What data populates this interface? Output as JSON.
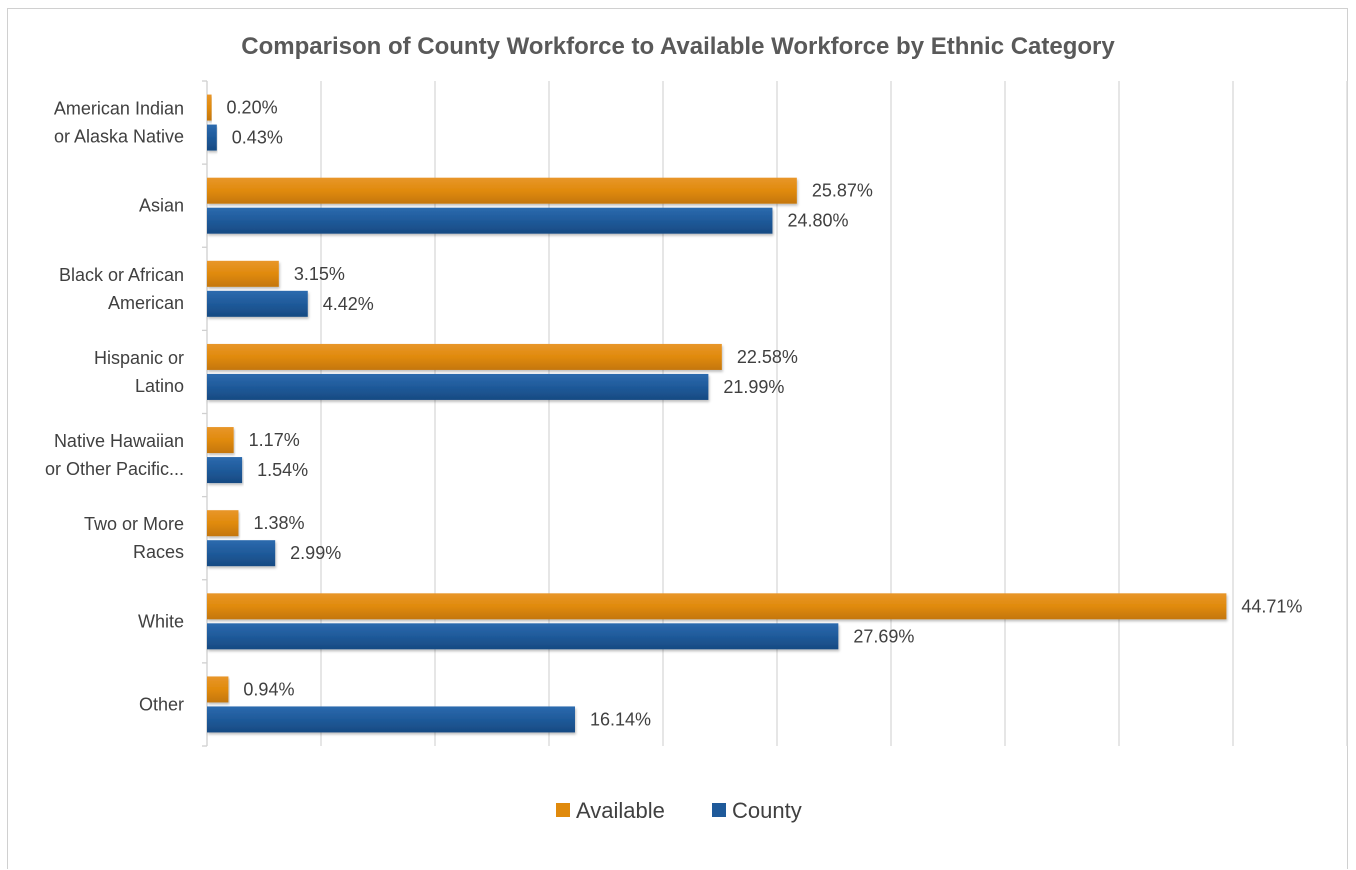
{
  "chart_data": {
    "type": "bar",
    "orientation": "horizontal",
    "title": "Comparison of County Workforce to Available Workforce by Ethnic Category",
    "categories": [
      [
        "American Indian",
        "or Alaska Native"
      ],
      [
        "Asian"
      ],
      [
        "Black or African",
        "American"
      ],
      [
        "Hispanic or",
        "Latino"
      ],
      [
        "Native Hawaiian",
        "or Other Pacific..."
      ],
      [
        "Two or More",
        "Races"
      ],
      [
        "White"
      ],
      [
        "Other"
      ]
    ],
    "series": [
      {
        "name": "Available",
        "color": "#E08A0C",
        "values": [
          0.2,
          25.87,
          3.15,
          22.58,
          1.17,
          1.38,
          44.71,
          0.94
        ],
        "labels": [
          "0.20%",
          "25.87%",
          "3.15%",
          "22.58%",
          "1.17%",
          "1.38%",
          "44.71%",
          "0.94%"
        ]
      },
      {
        "name": "County",
        "color": "#1F5A9A",
        "values": [
          0.43,
          24.8,
          4.42,
          21.99,
          1.54,
          2.99,
          27.69,
          16.14
        ],
        "labels": [
          "0.43%",
          "24.80%",
          "4.42%",
          "21.99%",
          "1.54%",
          "2.99%",
          "27.69%",
          "16.14%"
        ]
      }
    ],
    "xlim": [
      0,
      50
    ],
    "grid": true,
    "legend": "bottom"
  }
}
